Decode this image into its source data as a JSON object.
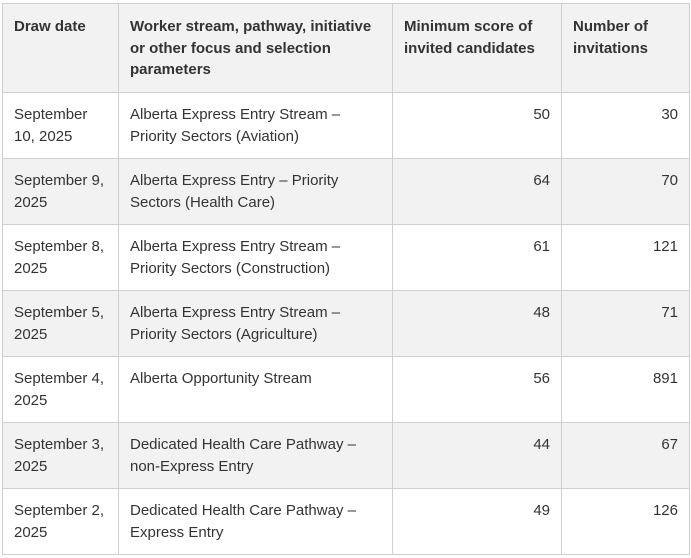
{
  "table": {
    "headers": [
      "Draw date",
      "Worker stream, pathway, initiative or other focus and selection parameters",
      "Minimum score of invited candidates",
      "Number of invitations"
    ],
    "rows": [
      [
        "September 10, 2025",
        "Alberta Express Entry Stream – Priority Sectors (Aviation)",
        "50",
        "30"
      ],
      [
        "September 9, 2025",
        "Alberta Express Entry – Priority Sectors (Health Care)",
        "64",
        "70"
      ],
      [
        "September 8, 2025",
        "Alberta Express Entry Stream – Priority Sectors (Construction)",
        "61",
        "121"
      ],
      [
        "September 5, 2025",
        "Alberta Express Entry Stream – Priority Sectors (Agriculture)",
        "48",
        "71"
      ],
      [
        "September 4, 2025",
        "Alberta Opportunity Stream",
        "56",
        "891"
      ],
      [
        "September 3, 2025",
        "Dedicated Health Care Pathway – non-Express Entry",
        "44",
        "67"
      ],
      [
        "September 2, 2025",
        "Dedicated Health Care Pathway – Express Entry",
        "49",
        "126"
      ]
    ]
  }
}
